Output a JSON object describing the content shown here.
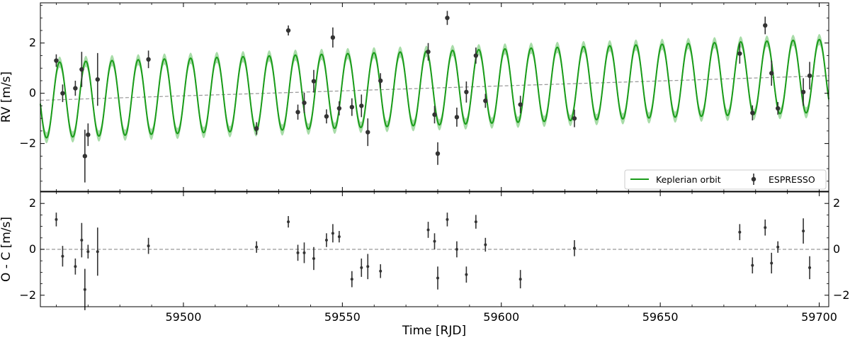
{
  "chart_data": [
    {
      "type": "scatter",
      "panel": "rv",
      "ylabel": "RV [m/s]",
      "xlim": [
        59455,
        59703
      ],
      "ylim": [
        -3.9,
        3.6
      ],
      "yticks": [
        -2,
        0,
        2
      ],
      "ytick_labels": [
        "−2",
        "0",
        "2"
      ],
      "grid": false,
      "legend_position": "lower-right",
      "legend": [
        {
          "label": "Keplerian orbit",
          "kind": "line",
          "color": "#1a9c1a"
        },
        {
          "label": "ESPRESSO",
          "kind": "errorbar",
          "color": "#333333"
        }
      ],
      "model": {
        "name": "Keplerian orbit",
        "period": 8.24,
        "phase_time": 59459.0,
        "amplitude_start": 1.5,
        "amplitude_end": 1.45,
        "trend_start": -0.28,
        "trend_end": 0.7,
        "band_halfwidth": 0.22,
        "line_color": "#1a9c1a",
        "band_color": "#a8dca8",
        "trend_color": "#999999"
      },
      "series": [
        {
          "name": "ESPRESSO",
          "color": "#333333",
          "points": [
            {
              "x": 59460,
              "y": 1.3,
              "err": 0.25
            },
            {
              "x": 59462,
              "y": 0.0,
              "err": 0.35
            },
            {
              "x": 59466,
              "y": 0.2,
              "err": 0.3
            },
            {
              "x": 59468,
              "y": 0.95,
              "err": 0.7
            },
            {
              "x": 59469,
              "y": -2.5,
              "err": 1.05
            },
            {
              "x": 59470,
              "y": -1.65,
              "err": 0.45
            },
            {
              "x": 59473,
              "y": 0.55,
              "err": 1.05
            },
            {
              "x": 59489,
              "y": 1.35,
              "err": 0.35
            },
            {
              "x": 59523,
              "y": -1.4,
              "err": 0.25
            },
            {
              "x": 59533,
              "y": 2.5,
              "err": 0.2
            },
            {
              "x": 59536,
              "y": -0.75,
              "err": 0.3
            },
            {
              "x": 59538,
              "y": -0.38,
              "err": 0.4
            },
            {
              "x": 59541,
              "y": 0.48,
              "err": 0.45
            },
            {
              "x": 59545,
              "y": -0.92,
              "err": 0.28
            },
            {
              "x": 59547,
              "y": 2.22,
              "err": 0.4
            },
            {
              "x": 59549,
              "y": -0.6,
              "err": 0.28
            },
            {
              "x": 59553,
              "y": -0.55,
              "err": 0.35
            },
            {
              "x": 59556,
              "y": -0.5,
              "err": 0.45
            },
            {
              "x": 59558,
              "y": -1.55,
              "err": 0.55
            },
            {
              "x": 59562,
              "y": 0.5,
              "err": 0.3
            },
            {
              "x": 59577,
              "y": 1.65,
              "err": 0.35
            },
            {
              "x": 59579,
              "y": -0.85,
              "err": 0.35
            },
            {
              "x": 59580,
              "y": -2.4,
              "err": 0.45
            },
            {
              "x": 59583,
              "y": 3.0,
              "err": 0.28
            },
            {
              "x": 59586,
              "y": -0.95,
              "err": 0.38
            },
            {
              "x": 59589,
              "y": 0.05,
              "err": 0.42
            },
            {
              "x": 59592,
              "y": 1.5,
              "err": 0.32
            },
            {
              "x": 59595,
              "y": -0.3,
              "err": 0.28
            },
            {
              "x": 59606,
              "y": -0.45,
              "err": 0.35
            },
            {
              "x": 59623,
              "y": -1.0,
              "err": 0.35
            },
            {
              "x": 59675,
              "y": 1.58,
              "err": 0.4
            },
            {
              "x": 59679,
              "y": -0.78,
              "err": 0.3
            },
            {
              "x": 59683,
              "y": 2.7,
              "err": 0.35
            },
            {
              "x": 59685,
              "y": 0.8,
              "err": 0.5
            },
            {
              "x": 59687,
              "y": -0.6,
              "err": 0.25
            },
            {
              "x": 59695,
              "y": 0.05,
              "err": 0.55
            },
            {
              "x": 59697,
              "y": 0.7,
              "err": 0.55
            }
          ]
        }
      ]
    },
    {
      "type": "scatter",
      "panel": "residuals",
      "xlabel": "Time [RJD]",
      "ylabel": "O - C [m/s]",
      "xlim": [
        59455,
        59703
      ],
      "ylim": [
        -2.5,
        2.5
      ],
      "xticks": [
        59500,
        59550,
        59600,
        59650,
        59700
      ],
      "xtick_labels": [
        "59500",
        "59550",
        "59600",
        "59650",
        "59700"
      ],
      "yticks": [
        -2,
        0,
        2
      ],
      "ytick_labels": [
        "−2",
        "0",
        "2"
      ],
      "zero_line": 0,
      "grid": false,
      "series": [
        {
          "name": "ESPRESSO",
          "color": "#333333",
          "points": [
            {
              "x": 59460,
              "y": 1.3,
              "err": 0.3
            },
            {
              "x": 59462,
              "y": -0.3,
              "err": 0.45
            },
            {
              "x": 59466,
              "y": -0.75,
              "err": 0.35
            },
            {
              "x": 59468,
              "y": 0.4,
              "err": 0.75
            },
            {
              "x": 59469,
              "y": -1.75,
              "err": 0.9
            },
            {
              "x": 59470,
              "y": -0.1,
              "err": 0.3
            },
            {
              "x": 59473,
              "y": -0.1,
              "err": 1.05
            },
            {
              "x": 59489,
              "y": 0.15,
              "err": 0.35
            },
            {
              "x": 59523,
              "y": 0.1,
              "err": 0.25
            },
            {
              "x": 59533,
              "y": 1.2,
              "err": 0.25
            },
            {
              "x": 59536,
              "y": -0.15,
              "err": 0.35
            },
            {
              "x": 59538,
              "y": -0.15,
              "err": 0.45
            },
            {
              "x": 59541,
              "y": -0.4,
              "err": 0.5
            },
            {
              "x": 59545,
              "y": 0.4,
              "err": 0.3
            },
            {
              "x": 59547,
              "y": 0.7,
              "err": 0.4
            },
            {
              "x": 59549,
              "y": 0.55,
              "err": 0.25
            },
            {
              "x": 59553,
              "y": -1.3,
              "err": 0.35
            },
            {
              "x": 59556,
              "y": -0.8,
              "err": 0.4
            },
            {
              "x": 59558,
              "y": -0.75,
              "err": 0.55
            },
            {
              "x": 59562,
              "y": -0.95,
              "err": 0.3
            },
            {
              "x": 59577,
              "y": 0.85,
              "err": 0.35
            },
            {
              "x": 59579,
              "y": 0.35,
              "err": 0.35
            },
            {
              "x": 59580,
              "y": -1.25,
              "err": 0.5
            },
            {
              "x": 59583,
              "y": 1.3,
              "err": 0.3
            },
            {
              "x": 59586,
              "y": 0.0,
              "err": 0.35
            },
            {
              "x": 59589,
              "y": -1.1,
              "err": 0.35
            },
            {
              "x": 59592,
              "y": 1.2,
              "err": 0.3
            },
            {
              "x": 59595,
              "y": 0.2,
              "err": 0.3
            },
            {
              "x": 59606,
              "y": -1.3,
              "err": 0.4
            },
            {
              "x": 59623,
              "y": 0.05,
              "err": 0.35
            },
            {
              "x": 59675,
              "y": 0.75,
              "err": 0.35
            },
            {
              "x": 59679,
              "y": -0.7,
              "err": 0.35
            },
            {
              "x": 59683,
              "y": 0.95,
              "err": 0.35
            },
            {
              "x": 59685,
              "y": -0.6,
              "err": 0.45
            },
            {
              "x": 59687,
              "y": 0.1,
              "err": 0.25
            },
            {
              "x": 59695,
              "y": 0.8,
              "err": 0.55
            },
            {
              "x": 59697,
              "y": -0.8,
              "err": 0.5
            }
          ]
        }
      ]
    }
  ]
}
